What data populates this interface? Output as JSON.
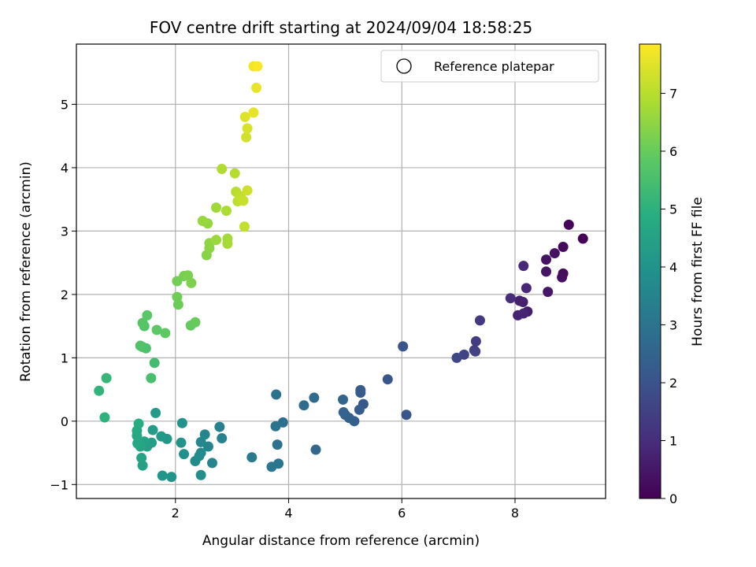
{
  "chart_data": {
    "type": "scatter",
    "title": "FOV centre drift starting at 2024/09/04 18:58:25",
    "xlabel": "Angular distance from reference (arcmin)",
    "ylabel": "Rotation from reference (arcmin)",
    "xlim": [
      0.25,
      9.6
    ],
    "ylim": [
      -1.22,
      5.95
    ],
    "xticks": [
      2,
      4,
      6,
      8
    ],
    "yticks": [
      -1,
      0,
      1,
      2,
      3,
      4,
      5
    ],
    "grid": true,
    "legend": {
      "position": "top-right",
      "entries": [
        "Reference platepar"
      ]
    },
    "colorbar": {
      "label": "Hours from first FF file",
      "range": [
        0,
        7.85
      ],
      "ticks": [
        0,
        1,
        2,
        3,
        4,
        5,
        6,
        7
      ],
      "colormap": "viridis"
    },
    "points": [
      [
        9.2,
        2.88,
        0.05
      ],
      [
        8.95,
        3.1,
        0.1
      ],
      [
        8.85,
        2.75,
        0.18
      ],
      [
        8.85,
        2.33,
        0.25
      ],
      [
        8.83,
        2.27,
        0.3
      ],
      [
        8.7,
        2.65,
        0.35
      ],
      [
        8.55,
        2.55,
        0.4
      ],
      [
        8.55,
        2.36,
        0.45
      ],
      [
        8.58,
        2.04,
        0.5
      ],
      [
        8.22,
        1.73,
        0.6
      ],
      [
        8.14,
        1.88,
        0.65
      ],
      [
        8.08,
        1.9,
        0.7
      ],
      [
        8.05,
        1.67,
        0.75
      ],
      [
        8.15,
        1.7,
        0.8
      ],
      [
        8.2,
        2.1,
        0.85
      ],
      [
        8.15,
        2.45,
        0.9
      ],
      [
        7.92,
        1.94,
        1.0
      ],
      [
        7.38,
        1.59,
        1.3
      ],
      [
        7.31,
        1.26,
        1.4
      ],
      [
        7.28,
        1.12,
        1.45
      ],
      [
        7.3,
        1.1,
        1.5
      ],
      [
        7.1,
        1.05,
        1.6
      ],
      [
        6.97,
        1.0,
        1.7
      ],
      [
        6.02,
        1.18,
        2.0
      ],
      [
        6.08,
        0.1,
        2.05
      ],
      [
        5.75,
        0.66,
        2.1
      ],
      [
        5.32,
        0.27,
        2.15
      ],
      [
        5.27,
        0.45,
        2.2
      ],
      [
        5.27,
        0.49,
        2.25
      ],
      [
        5.25,
        0.18,
        2.3
      ],
      [
        5.16,
        0.0,
        2.35
      ],
      [
        5.07,
        0.05,
        2.4
      ],
      [
        5.0,
        0.1,
        2.45
      ],
      [
        4.97,
        0.14,
        2.5
      ],
      [
        4.96,
        0.34,
        2.55
      ],
      [
        4.48,
        -0.45,
        2.6
      ],
      [
        4.45,
        0.37,
        2.7
      ],
      [
        4.27,
        0.25,
        2.75
      ],
      [
        3.9,
        -0.02,
        2.85
      ],
      [
        3.8,
        -0.37,
        2.9
      ],
      [
        3.78,
        0.42,
        2.95
      ],
      [
        3.77,
        -0.08,
        3.0
      ],
      [
        3.82,
        -0.67,
        3.05
      ],
      [
        3.7,
        -0.72,
        3.1
      ],
      [
        3.35,
        -0.57,
        3.2
      ],
      [
        2.78,
        -0.09,
        3.4
      ],
      [
        2.82,
        -0.27,
        3.45
      ],
      [
        2.65,
        -0.66,
        3.5
      ],
      [
        2.58,
        -0.4,
        3.55
      ],
      [
        2.52,
        -0.21,
        3.6
      ],
      [
        2.45,
        -0.33,
        3.65
      ],
      [
        2.45,
        -0.5,
        3.7
      ],
      [
        2.35,
        -0.63,
        3.75
      ],
      [
        2.42,
        -0.55,
        3.8
      ],
      [
        2.45,
        -0.85,
        3.85
      ],
      [
        2.15,
        -0.52,
        3.9
      ],
      [
        2.12,
        -0.03,
        3.95
      ],
      [
        2.1,
        -0.34,
        4.0
      ],
      [
        1.93,
        -0.88,
        4.05
      ],
      [
        1.77,
        -0.86,
        4.1
      ],
      [
        1.85,
        -0.28,
        4.15
      ],
      [
        1.75,
        -0.24,
        4.2
      ],
      [
        1.65,
        0.13,
        4.25
      ],
      [
        1.6,
        -0.14,
        4.3
      ],
      [
        1.58,
        -0.34,
        4.35
      ],
      [
        1.5,
        -0.4,
        4.4
      ],
      [
        1.45,
        -0.32,
        4.45
      ],
      [
        1.42,
        -0.7,
        4.5
      ],
      [
        1.4,
        -0.58,
        4.55
      ],
      [
        1.38,
        -0.4,
        4.6
      ],
      [
        1.33,
        -0.35,
        4.65
      ],
      [
        1.32,
        -0.23,
        4.7
      ],
      [
        1.32,
        -0.15,
        4.75
      ],
      [
        1.35,
        -0.04,
        4.8
      ],
      [
        0.75,
        0.06,
        5.0
      ],
      [
        0.65,
        0.48,
        5.1
      ],
      [
        0.78,
        0.68,
        5.2
      ],
      [
        1.63,
        0.92,
        5.4
      ],
      [
        1.57,
        0.68,
        5.5
      ],
      [
        1.48,
        1.15,
        5.55
      ],
      [
        1.42,
        1.17,
        5.6
      ],
      [
        1.38,
        1.19,
        5.65
      ],
      [
        1.45,
        1.5,
        5.7
      ],
      [
        1.42,
        1.55,
        5.75
      ],
      [
        1.5,
        1.67,
        5.8
      ],
      [
        1.67,
        1.44,
        5.85
      ],
      [
        1.82,
        1.39,
        5.9
      ],
      [
        2.27,
        1.51,
        5.95
      ],
      [
        2.35,
        1.56,
        6.0
      ],
      [
        2.05,
        1.84,
        6.05
      ],
      [
        2.03,
        1.96,
        6.1
      ],
      [
        2.03,
        2.21,
        6.15
      ],
      [
        2.15,
        2.29,
        6.2
      ],
      [
        2.22,
        2.3,
        6.25
      ],
      [
        2.28,
        2.18,
        6.3
      ],
      [
        2.55,
        2.62,
        6.4
      ],
      [
        2.6,
        2.73,
        6.45
      ],
      [
        2.6,
        2.81,
        6.5
      ],
      [
        2.57,
        3.12,
        6.55
      ],
      [
        2.48,
        3.16,
        6.6
      ],
      [
        2.72,
        2.86,
        6.65
      ],
      [
        2.72,
        3.37,
        6.7
      ],
      [
        2.92,
        2.88,
        6.75
      ],
      [
        2.92,
        2.8,
        6.8
      ],
      [
        2.9,
        3.32,
        6.85
      ],
      [
        2.82,
        3.98,
        6.9
      ],
      [
        3.05,
        3.91,
        6.95
      ],
      [
        3.07,
        3.62,
        7.0
      ],
      [
        3.1,
        3.47,
        7.05
      ],
      [
        3.15,
        3.55,
        7.1
      ],
      [
        3.22,
        3.07,
        7.15
      ],
      [
        3.2,
        3.48,
        7.2
      ],
      [
        3.27,
        3.64,
        7.25
      ],
      [
        3.25,
        4.48,
        7.3
      ],
      [
        3.27,
        4.62,
        7.4
      ],
      [
        3.23,
        4.8,
        7.45
      ],
      [
        3.38,
        4.87,
        7.55
      ],
      [
        3.43,
        5.26,
        7.6
      ],
      [
        3.38,
        5.6,
        7.7
      ],
      [
        3.45,
        5.6,
        7.8
      ]
    ]
  }
}
